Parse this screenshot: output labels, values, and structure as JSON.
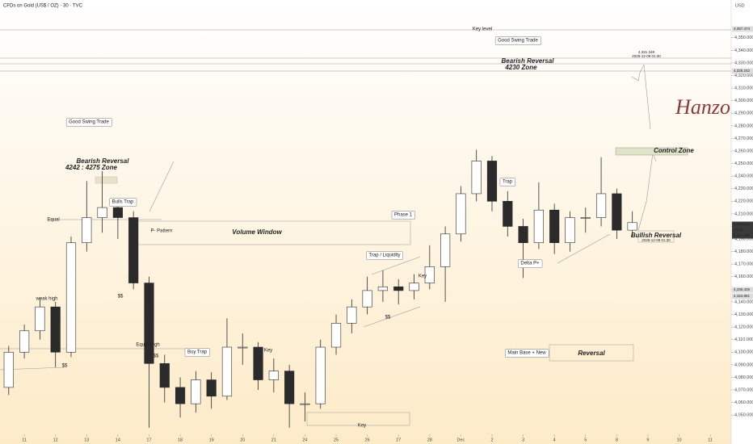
{
  "chart_data": {
    "type": "candlestick",
    "title": "CFDs on Gold (US$ / OZ) · 30 · TVC",
    "currency": "USD",
    "x": [
      -0.5,
      0,
      0.5,
      1,
      1.5,
      2,
      2.5,
      3,
      3.5,
      4,
      4.5,
      5,
      5.5,
      6,
      6.5,
      7,
      7.5,
      8,
      8.5,
      9,
      9.5,
      10,
      10.5,
      11,
      11.5,
      12,
      12.5,
      13,
      13.5,
      14,
      14.5,
      15,
      15.5,
      16,
      16.5,
      17,
      17.5,
      18,
      18.5,
      19,
      19.5
    ],
    "open": [
      4072,
      4100,
      4117,
      4136,
      4100,
      4187,
      4207,
      4215,
      4207,
      4155,
      4091,
      4072,
      4059,
      4078,
      4065,
      4104,
      4104,
      4078,
      4085,
      4059,
      4059,
      4104,
      4123,
      4136,
      4149,
      4152,
      4149,
      4155,
      4168,
      4194,
      4226,
      4252,
      4220,
      4200,
      4187,
      4213,
      4187,
      4207,
      4207,
      4226,
      4197
    ],
    "high": [
      4105,
      4122,
      4143,
      4140,
      4192,
      4236,
      4244,
      4222,
      4212,
      4160,
      4098,
      4080,
      4085,
      4084,
      4127,
      4115,
      4108,
      4095,
      4090,
      4068,
      4110,
      4130,
      4142,
      4160,
      4165,
      4158,
      4162,
      4185,
      4200,
      4232,
      4261,
      4256,
      4228,
      4206,
      4235,
      4218,
      4212,
      4215,
      4255,
      4230,
      4212
    ],
    "low": [
      4066,
      4095,
      4110,
      4088,
      4096,
      4180,
      4195,
      4190,
      4150,
      4040,
      4060,
      4048,
      4052,
      4055,
      4062,
      4090,
      4070,
      4068,
      4040,
      4045,
      4055,
      4098,
      4115,
      4130,
      4140,
      4138,
      4142,
      4150,
      4140,
      4188,
      4220,
      4212,
      4192,
      4159,
      4182,
      4178,
      4180,
      4195,
      4200,
      4190,
      4192
    ],
    "close": [
      4100,
      4117,
      4136,
      4100,
      4187,
      4207,
      4215,
      4207,
      4155,
      4091,
      4072,
      4059,
      4078,
      4065,
      4104,
      4104,
      4078,
      4085,
      4059,
      4059,
      4104,
      4123,
      4136,
      4149,
      4152,
      4149,
      4155,
      4168,
      4194,
      4226,
      4252,
      4220,
      4200,
      4187,
      4213,
      4187,
      4207,
      4207,
      4226,
      4197,
      4203
    ],
    "up_color": "#ffffff",
    "down_color": "#2b2b2b",
    "xlim": [
      -0.78,
      22.67
    ],
    "ylim": [
      4027,
      4380
    ],
    "xticks": [
      {
        "value": 0,
        "label": "11"
      },
      {
        "value": 1,
        "label": "12"
      },
      {
        "value": 2,
        "label": "13"
      },
      {
        "value": 3,
        "label": "14"
      },
      {
        "value": 4,
        "label": "17"
      },
      {
        "value": 5,
        "label": "18"
      },
      {
        "value": 6,
        "label": "19"
      },
      {
        "value": 7,
        "label": "20"
      },
      {
        "value": 8,
        "label": "21"
      },
      {
        "value": 9,
        "label": "24"
      },
      {
        "value": 10,
        "label": "25"
      },
      {
        "value": 11,
        "label": "26"
      },
      {
        "value": 12,
        "label": "27"
      },
      {
        "value": 13,
        "label": "28"
      },
      {
        "value": 14,
        "label": "Dec"
      },
      {
        "value": 15,
        "label": "2"
      },
      {
        "value": 16,
        "label": "3"
      },
      {
        "value": 17,
        "label": "4"
      },
      {
        "value": 18,
        "label": "5"
      },
      {
        "value": 19,
        "label": "8"
      },
      {
        "value": 20,
        "label": "9"
      },
      {
        "value": 21,
        "label": "10"
      },
      {
        "value": 22,
        "label": "11"
      }
    ],
    "yticks": [
      {
        "value": 4050,
        "label": "4,050.000"
      },
      {
        "value": 4060,
        "label": "4,060.000"
      },
      {
        "value": 4070,
        "label": "4,070.000"
      },
      {
        "value": 4080,
        "label": "4,080.000"
      },
      {
        "value": 4090,
        "label": "4,090.000"
      },
      {
        "value": 4100,
        "label": "4,100.000"
      },
      {
        "value": 4110,
        "label": "4,110.000"
      },
      {
        "value": 4120,
        "label": "4,120.000"
      },
      {
        "value": 4130,
        "label": "4,130.000"
      },
      {
        "value": 4140,
        "label": "4,140.000"
      },
      {
        "value": 4150,
        "label": "4,150.000"
      },
      {
        "value": 4160,
        "label": "4,160.000"
      },
      {
        "value": 4170,
        "label": "4,170.000"
      },
      {
        "value": 4180,
        "label": "4,180.000"
      },
      {
        "value": 4190,
        "label": "4,190.000"
      },
      {
        "value": 4200,
        "label": "4,200.000"
      },
      {
        "value": 4210,
        "label": "4,210.000"
      },
      {
        "value": 4220,
        "label": "4,220.000"
      },
      {
        "value": 4230,
        "label": "4,230.000"
      },
      {
        "value": 4240,
        "label": "4,240.000"
      },
      {
        "value": 4250,
        "label": "4,250.000"
      },
      {
        "value": 4260,
        "label": "4,260.000"
      },
      {
        "value": 4270,
        "label": "4,270.000"
      },
      {
        "value": 4280,
        "label": "4,280.000"
      },
      {
        "value": 4290,
        "label": "4,290.000"
      },
      {
        "value": 4300,
        "label": "4,300.000"
      },
      {
        "value": 4310,
        "label": "4,310.000"
      },
      {
        "value": 4320,
        "label": "4,320.000"
      },
      {
        "value": 4330,
        "label": "4,330.000"
      },
      {
        "value": 4340,
        "label": "4,340.000"
      },
      {
        "value": 4350,
        "label": "4,350.000"
      }
    ],
    "price_badges": [
      "4,357.474",
      "4,325.242",
      "4,206.113",
      "00:08",
      "4,202.060",
      "4,156.426",
      "4,154.851"
    ],
    "annotations": [
      "Key level",
      "Good Swing Trade",
      "Bearish Reversal",
      "4230 Zone",
      "Good Swing Trade",
      "Bearish Reversal",
      "4242 : 4275 Zone",
      "Bulls Trap",
      "Equal",
      "P- Pattern",
      "Volume Window",
      "weak high",
      "Equal High",
      "Buy Trap",
      "Key",
      "Key",
      "Trap / Liquidity",
      "Key",
      "Phase 1",
      "Trap",
      "Delta P+",
      "Control Zone",
      "Bullish Reversal",
      "2025-12-09 01:30",
      "4,331.348",
      "2025-12-09 01:30",
      "Main Base + New",
      "Reversal",
      "$$",
      "$$",
      "$$",
      "$$",
      "Hanzo"
    ]
  }
}
